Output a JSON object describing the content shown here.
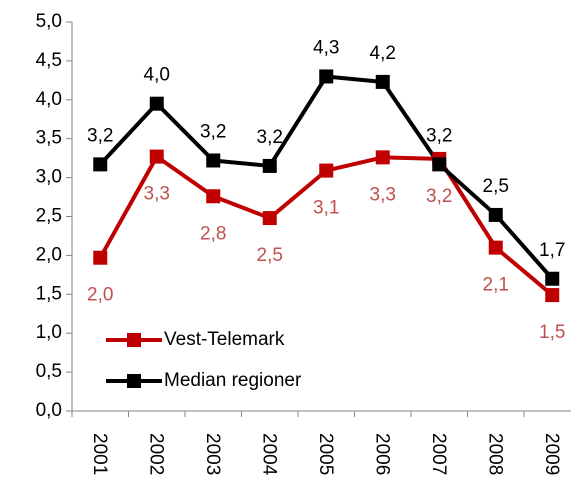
{
  "chart_data": {
    "type": "line",
    "categories": [
      "2001",
      "2002",
      "2003",
      "2004",
      "2005",
      "2006",
      "2007",
      "2008",
      "2009"
    ],
    "series": [
      {
        "name": "Vest-Telemark",
        "color": "#c00000",
        "label_color": "#c0504d",
        "values": [
          1.97,
          3.27,
          2.76,
          2.48,
          3.09,
          3.26,
          3.24,
          2.1,
          1.49
        ],
        "value_labels": [
          "2,0",
          "3,3",
          "2,8",
          "2,5",
          "3,1",
          "3,3",
          "3,2",
          "2,1",
          "1,5"
        ]
      },
      {
        "name": "Median regioner",
        "color": "#000000",
        "label_color": "#000000",
        "values": [
          3.17,
          3.95,
          3.22,
          3.15,
          4.3,
          4.23,
          3.17,
          2.52,
          1.7
        ],
        "value_labels": [
          "3,2",
          "4,0",
          "3,2",
          "3,2",
          "4,3",
          "4,2",
          "3,2",
          "2,5",
          "1,7"
        ]
      }
    ],
    "ylim": [
      0,
      5
    ],
    "yticks": [
      {
        "value": 0,
        "label": "0,0"
      },
      {
        "value": 0.5,
        "label": "0,5"
      },
      {
        "value": 1,
        "label": "1,0"
      },
      {
        "value": 1.5,
        "label": "1,5"
      },
      {
        "value": 2,
        "label": "2,0"
      },
      {
        "value": 2.5,
        "label": "2,5"
      },
      {
        "value": 3,
        "label": "3,0"
      },
      {
        "value": 3.5,
        "label": "3,5"
      },
      {
        "value": 4,
        "label": "4,0"
      },
      {
        "value": 4.5,
        "label": "4,5"
      },
      {
        "value": 5,
        "label": "5,0"
      }
    ],
    "legend": "lower left"
  }
}
